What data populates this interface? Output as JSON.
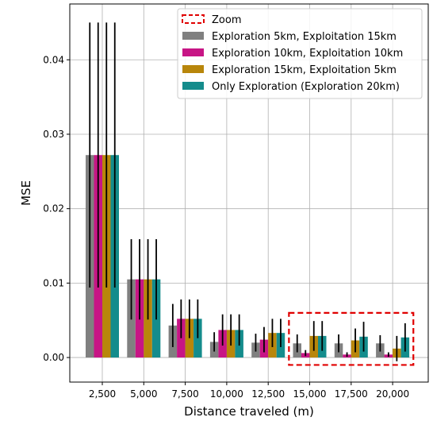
{
  "chart_data": {
    "type": "bar",
    "xlabel": "Distance traveled (m)",
    "ylabel": "MSE",
    "ylim": [
      -0.0033,
      0.0475
    ],
    "yticks": [
      0.0,
      0.01,
      0.02,
      0.03,
      0.04
    ],
    "ytick_labels": [
      "0.00",
      "0.01",
      "0.02",
      "0.03",
      "0.04"
    ],
    "categories": [
      "2,500",
      "5,000",
      "7,500",
      "10,000",
      "12,500",
      "15,000",
      "17,500",
      "20,000"
    ],
    "grid": true,
    "legend_position": "top-right",
    "series": [
      {
        "name": "Exploration 5km, Exploitation 15km",
        "color": "#808080",
        "values": [
          0.0272,
          0.0105,
          0.0043,
          0.0021,
          0.002,
          0.0019,
          0.0019,
          0.0019
        ],
        "errors": [
          0.0178,
          0.0054,
          0.0029,
          0.0013,
          0.0012,
          0.0012,
          0.0012,
          0.0011
        ]
      },
      {
        "name": "Exploration 10km, Exploitation 10km",
        "color": "#c71585",
        "values": [
          0.0272,
          0.0105,
          0.0052,
          0.0037,
          0.0024,
          0.0006,
          0.0004,
          0.0004
        ],
        "errors": [
          0.0178,
          0.0054,
          0.0026,
          0.0021,
          0.0017,
          0.0004,
          0.0003,
          0.0003
        ]
      },
      {
        "name": "Exploration 15km, Exploitation 5km",
        "color": "#b8860b",
        "values": [
          0.0272,
          0.0105,
          0.0052,
          0.0037,
          0.0033,
          0.0029,
          0.0023,
          0.0012
        ],
        "errors": [
          0.0178,
          0.0054,
          0.0026,
          0.0021,
          0.0019,
          0.002,
          0.0016,
          0.0017
        ]
      },
      {
        "name": "Only Exploration (Exploration 20km)",
        "color": "#148c8c",
        "values": [
          0.0272,
          0.0105,
          0.0052,
          0.0037,
          0.0033,
          0.0029,
          0.0028,
          0.0027
        ],
        "errors": [
          0.0178,
          0.0054,
          0.0026,
          0.0021,
          0.0019,
          0.002,
          0.002,
          0.0019
        ]
      }
    ],
    "annotations": [
      {
        "label": "Zoom",
        "color": "#e00000",
        "x_start_index": 5,
        "x_end_index": 7,
        "y_range": [
          -0.001,
          0.006
        ]
      }
    ]
  }
}
